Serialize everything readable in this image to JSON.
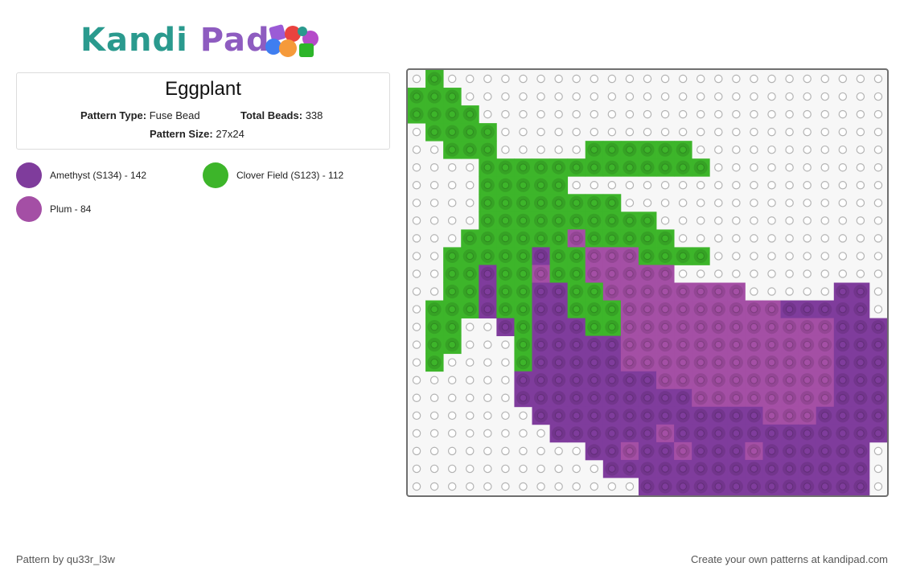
{
  "logo": {
    "word1": "Kandi",
    "word2": "Pad",
    "icon": "bead-pile-icon"
  },
  "pattern": {
    "title": "Eggplant",
    "type_label": "Pattern Type:",
    "type_value": "Fuse Bead",
    "beads_label": "Total Beads:",
    "beads_value": "338",
    "size_label": "Pattern Size:",
    "size_value": "27x24"
  },
  "legend": [
    {
      "label": "Amethyst (S134) - 142",
      "color": "#7f3c9c"
    },
    {
      "label": "Clover Field (S123) - 112",
      "color": "#3db52a"
    },
    {
      "label": "Plum - 84",
      "color": "#a44fa5"
    }
  ],
  "grid": {
    "cols": 27,
    "rows": 24,
    "empty_color": "#ffffff",
    "palette": {
      "G": "#3db52a",
      "A": "#7f3c9c",
      "P": "#a44fa5"
    },
    "rows_data": [
      ".G.........................",
      "GGG........................",
      "GGGG.......................",
      ".GGGG......................",
      "..GGG.....GGGGGG...........",
      "....GGGGGGGGGGGGG..........",
      "....GGGGG..................",
      "....GGGGGGGG...............",
      "....GGGGGGGGGG.............",
      "...GGGGGGPGGGGG............",
      "..GGGGGAGGPPPGGGG..........",
      "..GGAGGPGGPPPPP............",
      "..GGAGGAAGGPPPPPPPP.....AA.",
      ".GGGAGGAAGGGPPPPPPPPPAAAAA.",
      ".GG..AGAAAGGPPPPPPPPPPPPAAA",
      ".GG...GAAAAAPPPPPPPPPPPPAAA",
      ".G....GAAAAAPPPPPPPPPPPPAAA",
      "......AAAAAAAAPPPPPPPPPPAAA",
      "......AAAAAAAAAAPPPPPPPPAAA",
      ".......AAAAAAAAAAAAAPPPAAAA",
      "........AAAAAAPAAAAAAAAAAAA",
      "..........AAPAAPAAAPAAAAAA.",
      "...........AAAAAAAAAAAAAAA.",
      ".............AAAAAAAAAAAAA."
    ]
  },
  "footer": {
    "author": "Pattern by qu33r_l3w",
    "cta": "Create your own patterns at kandipad.com"
  }
}
